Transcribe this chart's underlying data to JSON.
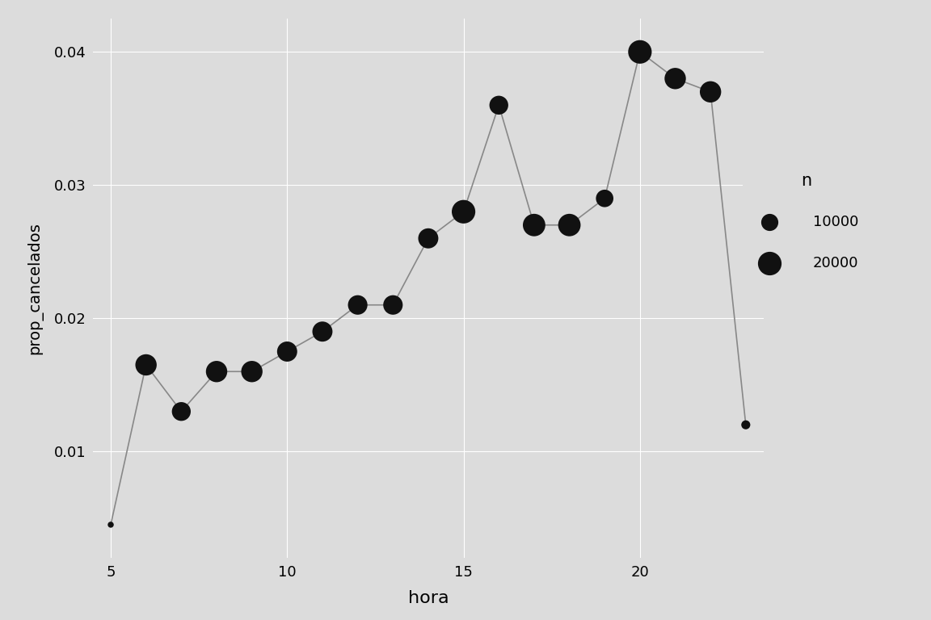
{
  "hours": [
    5,
    6,
    7,
    8,
    9,
    10,
    11,
    12,
    13,
    14,
    15,
    16,
    17,
    18,
    19,
    20,
    21,
    22,
    23
  ],
  "prop_cancelados": [
    0.0045,
    0.0165,
    0.013,
    0.016,
    0.016,
    0.0175,
    0.019,
    0.021,
    0.021,
    0.026,
    0.028,
    0.036,
    0.027,
    0.027,
    0.029,
    0.04,
    0.038,
    0.037,
    0.012
  ],
  "n_values": [
    1200,
    18000,
    14000,
    18000,
    18000,
    16000,
    16000,
    15000,
    15000,
    16000,
    22000,
    14000,
    20000,
    20000,
    12000,
    22000,
    18000,
    18000,
    3000
  ],
  "xlabel": "hora",
  "ylabel": "prop_cancelados",
  "panel_color": "#DCDCDC",
  "outer_color": "#DCDCDC",
  "line_color": "#888888",
  "marker_color": "#111111",
  "legend_title": "n",
  "legend_sizes": [
    10000,
    20000
  ],
  "xlim": [
    4.5,
    23.5
  ],
  "ylim": [
    0.002,
    0.0425
  ],
  "xticks": [
    5,
    10,
    15,
    20
  ],
  "yticks": [
    0.01,
    0.02,
    0.03,
    0.04
  ],
  "min_n": 1000,
  "max_n": 25000,
  "min_size": 25,
  "max_size": 500
}
